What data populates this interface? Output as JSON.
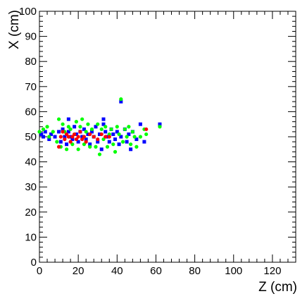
{
  "chart_data": {
    "type": "scatter",
    "title": "",
    "xlabel": "Z (cm)",
    "ylabel": "X (cm)",
    "xlim": [
      0,
      132
    ],
    "ylim": [
      0,
      100
    ],
    "x_ticks": [
      0,
      20,
      40,
      60,
      80,
      100,
      120
    ],
    "y_ticks": [
      0,
      10,
      20,
      30,
      40,
      50,
      60,
      70,
      80,
      90,
      100
    ],
    "grid": false,
    "legend": "none",
    "series": [
      {
        "color": "#0000ff",
        "marker": "square",
        "points": [
          [
            1,
            51
          ],
          [
            2,
            50
          ],
          [
            3,
            52
          ],
          [
            5,
            49
          ],
          [
            6,
            51
          ],
          [
            8,
            50
          ],
          [
            10,
            52
          ],
          [
            11,
            48
          ],
          [
            12,
            53
          ],
          [
            13,
            50
          ],
          [
            14,
            47
          ],
          [
            15,
            57
          ],
          [
            15,
            52
          ],
          [
            16,
            50
          ],
          [
            17,
            49
          ],
          [
            18,
            54
          ],
          [
            19,
            51
          ],
          [
            20,
            48
          ],
          [
            21,
            52
          ],
          [
            22,
            50
          ],
          [
            23,
            53
          ],
          [
            24,
            49
          ],
          [
            25,
            51
          ],
          [
            26,
            47
          ],
          [
            27,
            52
          ],
          [
            28,
            50
          ],
          [
            29,
            54
          ],
          [
            30,
            48
          ],
          [
            31,
            51
          ],
          [
            32,
            45
          ],
          [
            33,
            57
          ],
          [
            33,
            55
          ],
          [
            34,
            52
          ],
          [
            35,
            50
          ],
          [
            36,
            48
          ],
          [
            37,
            53
          ],
          [
            38,
            51
          ],
          [
            39,
            49
          ],
          [
            40,
            52
          ],
          [
            41,
            47
          ],
          [
            42,
            64
          ],
          [
            42,
            50
          ],
          [
            44,
            53
          ],
          [
            45,
            48
          ],
          [
            46,
            51
          ],
          [
            47,
            45
          ],
          [
            48,
            52
          ],
          [
            50,
            49
          ],
          [
            52,
            55
          ],
          [
            54,
            48
          ],
          [
            62,
            55
          ]
        ]
      },
      {
        "color": "#00ff00",
        "marker": "circle",
        "points": [
          [
            0,
            52
          ],
          [
            2,
            53
          ],
          [
            4,
            54
          ],
          [
            5,
            50
          ],
          [
            7,
            52
          ],
          [
            9,
            48
          ],
          [
            10,
            57
          ],
          [
            11,
            46
          ],
          [
            12,
            55
          ],
          [
            13,
            52
          ],
          [
            14,
            45
          ],
          [
            15,
            54
          ],
          [
            16,
            53
          ],
          [
            17,
            47
          ],
          [
            18,
            51
          ],
          [
            19,
            56
          ],
          [
            20,
            45
          ],
          [
            21,
            54
          ],
          [
            22,
            57
          ],
          [
            23,
            47
          ],
          [
            24,
            52
          ],
          [
            25,
            55
          ],
          [
            26,
            46
          ],
          [
            27,
            53
          ],
          [
            28,
            50
          ],
          [
            29,
            46
          ],
          [
            30,
            55
          ],
          [
            31,
            43
          ],
          [
            32,
            53
          ],
          [
            33,
            49
          ],
          [
            34,
            54
          ],
          [
            35,
            46
          ],
          [
            36,
            51
          ],
          [
            37,
            53
          ],
          [
            38,
            47
          ],
          [
            39,
            44
          ],
          [
            40,
            54
          ],
          [
            41,
            51
          ],
          [
            42,
            65
          ],
          [
            43,
            48
          ],
          [
            44,
            53
          ],
          [
            45,
            50
          ],
          [
            46,
            54
          ],
          [
            47,
            47
          ],
          [
            48,
            52
          ],
          [
            49,
            50
          ],
          [
            50,
            46
          ],
          [
            52,
            50
          ],
          [
            54,
            53
          ],
          [
            55,
            51
          ],
          [
            62,
            54
          ]
        ]
      },
      {
        "color": "#ff0000",
        "marker": "circle",
        "points": [
          [
            10,
            46
          ],
          [
            11,
            50
          ],
          [
            12,
            52
          ],
          [
            13,
            49
          ],
          [
            14,
            51
          ],
          [
            15,
            50
          ],
          [
            16,
            48
          ],
          [
            17,
            50
          ],
          [
            18,
            51
          ],
          [
            19,
            49
          ],
          [
            20,
            50
          ],
          [
            21,
            52
          ],
          [
            22,
            49
          ],
          [
            23,
            50
          ],
          [
            24,
            48
          ],
          [
            26,
            51
          ],
          [
            28,
            50
          ],
          [
            30,
            49
          ],
          [
            32,
            51
          ],
          [
            34,
            50
          ],
          [
            36,
            50
          ],
          [
            55,
            53
          ]
        ]
      }
    ]
  }
}
